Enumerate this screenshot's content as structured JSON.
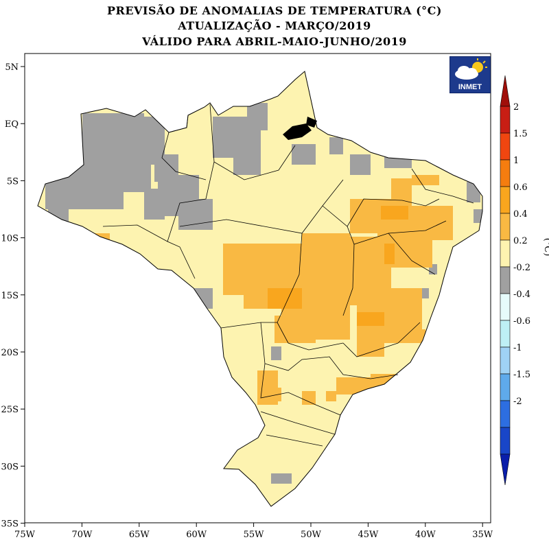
{
  "title": {
    "line1": "PREVISÃO DE ANOMALIAS DE TEMPERATURA (°C)",
    "line2": "ATUALIZAÇÃO - MARÇO/2019",
    "line3": "VÁLIDO PARA ABRIL-MAIO-JUNHO/2019"
  },
  "logo": {
    "text": "INMET",
    "icon": "cloud-sun-icon"
  },
  "axes": {
    "lat_ticks": [
      "5N",
      "EQ",
      "5S",
      "10S",
      "15S",
      "20S",
      "25S",
      "30S",
      "35S"
    ],
    "lon_ticks": [
      "75W",
      "70W",
      "65W",
      "60W",
      "55W",
      "50W",
      "45W",
      "40W",
      "35W"
    ]
  },
  "colorbar": {
    "unit": "(°C)",
    "labels": [
      "2",
      "1.5",
      "1",
      "0.6",
      "0.4",
      "0.2",
      "-0.2",
      "-0.4",
      "-0.6",
      "-1",
      "-1.5",
      "-2"
    ],
    "colors": [
      "#c81e14",
      "#f04610",
      "#f57d0f",
      "#f9a61e",
      "#f9b943",
      "#fdf3b0",
      "#a0a0a0",
      "#e6fbfb",
      "#bef0f5",
      "#9fd2f5",
      "#5faaeb",
      "#2d6ee1",
      "#1946c8"
    ],
    "upper_arrow_color": "#a00f0a",
    "lower_arrow_color": "#0a1eaa"
  },
  "map_colors": {
    "light": "#fdf3b0",
    "neutral": "#a0a0a0",
    "warm": "#f9b943",
    "warmer": "#f9a61e"
  }
}
